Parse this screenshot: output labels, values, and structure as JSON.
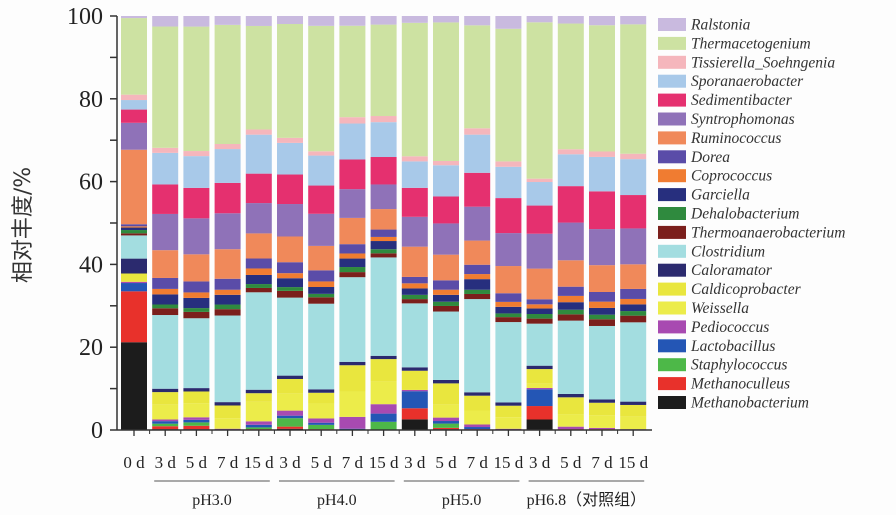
{
  "chart_data": {
    "type": "bar",
    "stacked": true,
    "title": "",
    "xlabel": "",
    "ylabel": "相对丰度/%",
    "ylim": [
      0,
      100
    ],
    "yticks": [
      0,
      20,
      40,
      60,
      80,
      100
    ],
    "grid": false,
    "legend_position": "right",
    "categories": [
      "0 d",
      "3 d",
      "5 d",
      "7 d",
      "15 d",
      "3 d",
      "5 d",
      "7 d",
      "15 d",
      "3 d",
      "5 d",
      "7 d",
      "15 d",
      "3 d",
      "5 d",
      "7 d",
      "15 d"
    ],
    "groups": [
      {
        "label": "pH3.0",
        "from": 1,
        "to": 4
      },
      {
        "label": "pH4.0",
        "from": 5,
        "to": 8
      },
      {
        "label": "pH5.0",
        "from": 9,
        "to": 12
      },
      {
        "label": "pH6.8（对照组）",
        "from": 13,
        "to": 16
      }
    ],
    "series": [
      {
        "name": "Methanobacterium",
        "color": "#1c1c1c",
        "values": [
          21.2,
          0.2,
          0.2,
          0,
          0,
          0.3,
          0,
          0,
          0,
          2.5,
          0.2,
          0,
          0,
          2.5,
          0,
          0,
          0
        ]
      },
      {
        "name": "Methanoculleus",
        "color": "#e8312b",
        "values": [
          12.3,
          0.7,
          0.8,
          0,
          0.2,
          0.5,
          0.2,
          0,
          0,
          2.6,
          0.3,
          0.2,
          0,
          3.2,
          0.2,
          0.2,
          0
        ]
      },
      {
        "name": "Staphylococcus",
        "color": "#4db848",
        "values": [
          0,
          0.6,
          0.8,
          0,
          0.4,
          2.0,
          1.0,
          0,
          2.0,
          0,
          1.0,
          0,
          0,
          0,
          0,
          0,
          0
        ]
      },
      {
        "name": "Lactobacillus",
        "color": "#2456b5",
        "values": [
          2.0,
          0.6,
          0.6,
          0,
          0.6,
          0.6,
          0.5,
          0.3,
          2.0,
          4.0,
          0.6,
          0.5,
          0,
          4.0,
          0,
          0,
          0
        ]
      },
      {
        "name": "Pediococcus",
        "color": "#a84ab1",
        "values": [
          0.3,
          0.4,
          0.6,
          0.3,
          0.8,
          1.2,
          1.0,
          2.8,
          2.3,
          0.3,
          0.8,
          0.6,
          0.3,
          0.3,
          0.6,
          0.3,
          0.2
        ]
      },
      {
        "name": "Weissella",
        "color": "#ecec4a",
        "values": [
          0,
          3.5,
          3.3,
          2.5,
          4.5,
          4.0,
          3.5,
          6.0,
          5.5,
          0,
          3.0,
          3.3,
          2.8,
          1.0,
          3.0,
          3.0,
          3.0
        ]
      },
      {
        "name": "Caldicoprobacter",
        "color": "#e9e63e",
        "values": [
          2.0,
          3.0,
          2.8,
          3.0,
          2.0,
          3.5,
          2.5,
          6.2,
          5.5,
          4.5,
          5.0,
          3.5,
          2.8,
          3.5,
          4.0,
          3.0,
          2.8
        ]
      },
      {
        "name": "Caloramator",
        "color": "#2b2a6e",
        "values": [
          3.6,
          0.8,
          0.8,
          0.8,
          0.8,
          0.8,
          0.8,
          0.8,
          0.8,
          0.8,
          0.8,
          0.8,
          0.8,
          0.8,
          0.8,
          0.8,
          0.8
        ]
      },
      {
        "name": "Clostridium",
        "color": "#a3dde0",
        "values": [
          5.6,
          17.5,
          16.5,
          20.5,
          22.5,
          18.5,
          20.0,
          20.0,
          24.0,
          15.0,
          16.0,
          22.0,
          19.5,
          10.0,
          17.5,
          17.5,
          19.0
        ]
      },
      {
        "name": "Thermoanaerobacterium",
        "color": "#7b1f1c",
        "values": [
          0.5,
          1.6,
          1.5,
          1.5,
          1.0,
          1.6,
          1.5,
          1.2,
          1.0,
          1.0,
          1.3,
          1.2,
          1.2,
          1.2,
          1.5,
          1.6,
          1.6
        ]
      },
      {
        "name": "Dehalobacterium",
        "color": "#2f8a3e",
        "values": [
          0.8,
          0.9,
          0.9,
          1.1,
          0.9,
          0.9,
          0.8,
          1.2,
          1.0,
          1.0,
          1.0,
          1.0,
          0.9,
          1.1,
          1.1,
          1.1,
          1.1
        ]
      },
      {
        "name": "Garciella",
        "color": "#272f7e",
        "values": [
          0.6,
          2.4,
          2.4,
          2.3,
          2.1,
          2.1,
          1.6,
          2.0,
          2.0,
          1.5,
          1.6,
          2.5,
          1.6,
          1.3,
          1.8,
          1.6,
          1.6
        ]
      },
      {
        "name": "Coprococcus",
        "color": "#f07c31",
        "values": [
          0.3,
          1.3,
          1.3,
          1.2,
          1.5,
          1.2,
          1.3,
          1.2,
          1.0,
          1.2,
          1.2,
          1.2,
          1.2,
          1.0,
          1.5,
          1.5,
          1.3
        ]
      },
      {
        "name": "Dorea",
        "color": "#5a4ca8",
        "values": [
          0.5,
          2.6,
          2.6,
          2.6,
          2.3,
          2.6,
          2.6,
          2.2,
          1.8,
          1.5,
          2.2,
          2.2,
          2.1,
          1.2,
          2.2,
          2.3,
          2.4
        ]
      },
      {
        "name": "Ruminococcus",
        "color": "#f0895a",
        "values": [
          18.0,
          6.6,
          6.4,
          7.0,
          5.8,
          6.1,
          5.7,
          6.2,
          5.0,
          7.1,
          6.0,
          5.7,
          6.6,
          7.3,
          6.3,
          6.4,
          5.9
        ]
      },
      {
        "name": "Syntrophomonas",
        "color": "#8f72b8",
        "values": [
          6.5,
          8.6,
          8.5,
          8.5,
          7.0,
          7.7,
          7.5,
          6.8,
          6.0,
          7.0,
          7.3,
          8.0,
          8.0,
          8.3,
          9.0,
          8.6,
          8.6
        ]
      },
      {
        "name": "Sedimentibacter",
        "color": "#e5306f",
        "values": [
          3.2,
          7.0,
          7.2,
          7.2,
          6.8,
          7.0,
          6.6,
          7.0,
          6.7,
          6.8,
          6.3,
          8.0,
          8.5,
          6.7,
          8.7,
          9.0,
          8.0
        ]
      },
      {
        "name": "Sporanaerobacter",
        "color": "#a8c9e9",
        "values": [
          2.3,
          7.5,
          7.5,
          8.0,
          9.0,
          7.5,
          7.0,
          8.5,
          8.5,
          6.2,
          7.3,
          9.0,
          7.6,
          5.6,
          7.6,
          8.2,
          8.6
        ]
      },
      {
        "name": "Tissierella_Soehngenia",
        "color": "#f5b6bc",
        "values": [
          1.3,
          1.2,
          1.2,
          1.2,
          1.2,
          1.2,
          1.0,
          1.5,
          1.5,
          1.2,
          1.0,
          1.5,
          1.3,
          0.8,
          1.2,
          1.3,
          1.3
        ]
      },
      {
        "name": "Thermacetogenium",
        "color": "#cde2a2",
        "values": [
          18.5,
          28.8,
          29.4,
          28.2,
          23.9,
          27.0,
          29.3,
          21.6,
          22.3,
          31.3,
          32.4,
          24.3,
          32.2,
          37.2,
          30.0,
          30.1,
          31.0
        ]
      },
      {
        "name": "Ralstonia",
        "color": "#c9badf",
        "values": [
          0.5,
          2.5,
          2.5,
          2.1,
          2.3,
          1.9,
          2.3,
          2.3,
          2.1,
          1.6,
          1.5,
          2.2,
          3.1,
          1.5,
          1.8,
          2.2,
          2.0
        ]
      }
    ],
    "legend_order": [
      "Ralstonia",
      "Thermacetogenium",
      "Tissierella_Soehngenia",
      "Sporanaerobacter",
      "Sedimentibacter",
      "Syntrophomonas",
      "Ruminococcus",
      "Dorea",
      "Coprococcus",
      "Garciella",
      "Dehalobacterium",
      "Thermoanaerobacterium",
      "Clostridium",
      "Caloramator",
      "Caldicoprobacter",
      "Weissella",
      "Pediococcus",
      "Lactobacillus",
      "Staphylococcus",
      "Methanoculleus",
      "Methanobacterium"
    ]
  }
}
